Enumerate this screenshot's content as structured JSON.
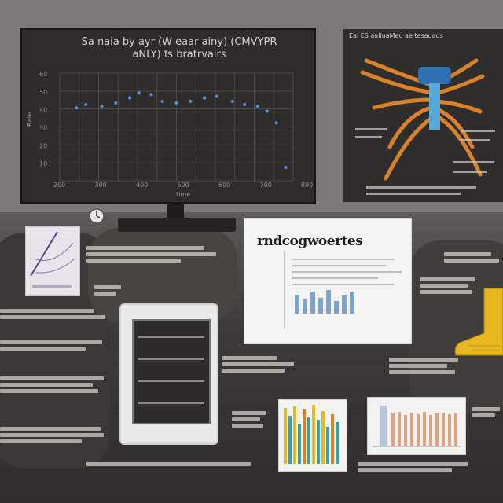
{
  "monitor": {
    "title_line1": "Sa naia by ayr (W eaar ainy) (CMVYPR",
    "title_line2": "aNLY) fs bratrvairs",
    "y_ticks": [
      "60",
      "50",
      "40",
      "30",
      "20",
      "10"
    ],
    "x_ticks": [
      "200",
      "300",
      "400",
      "500",
      "600",
      "700",
      "800"
    ],
    "x_label": "time",
    "y_label": "Rate"
  },
  "chart_data": {
    "type": "scatter",
    "x": [
      118,
      128,
      145,
      160,
      175,
      185,
      198,
      210,
      225,
      240,
      255,
      268,
      285,
      298,
      312,
      322,
      332,
      342
    ],
    "y": [
      44,
      46,
      45,
      47,
      50,
      53,
      52,
      48,
      47,
      48,
      50,
      51,
      48,
      46,
      45,
      42,
      35,
      8
    ],
    "ylim": [
      0,
      65
    ],
    "xlim": [
      100,
      350
    ]
  },
  "anatomy": {
    "title": "Eal ES aaliuaMeu ae tasauaus"
  },
  "document": {
    "title": "rndcogwoertes"
  },
  "colors": {
    "wall": "#7b7875",
    "screen": "#2e2d2c",
    "accent_orange": "#d9822b",
    "accent_blue": "#4a8fc9",
    "accent_yellow": "#e8b820",
    "accent_teal": "#3aa3a8"
  },
  "icons": {
    "clock": "clock-icon",
    "figure": "anatomy-figure",
    "boot": "boot-object"
  }
}
